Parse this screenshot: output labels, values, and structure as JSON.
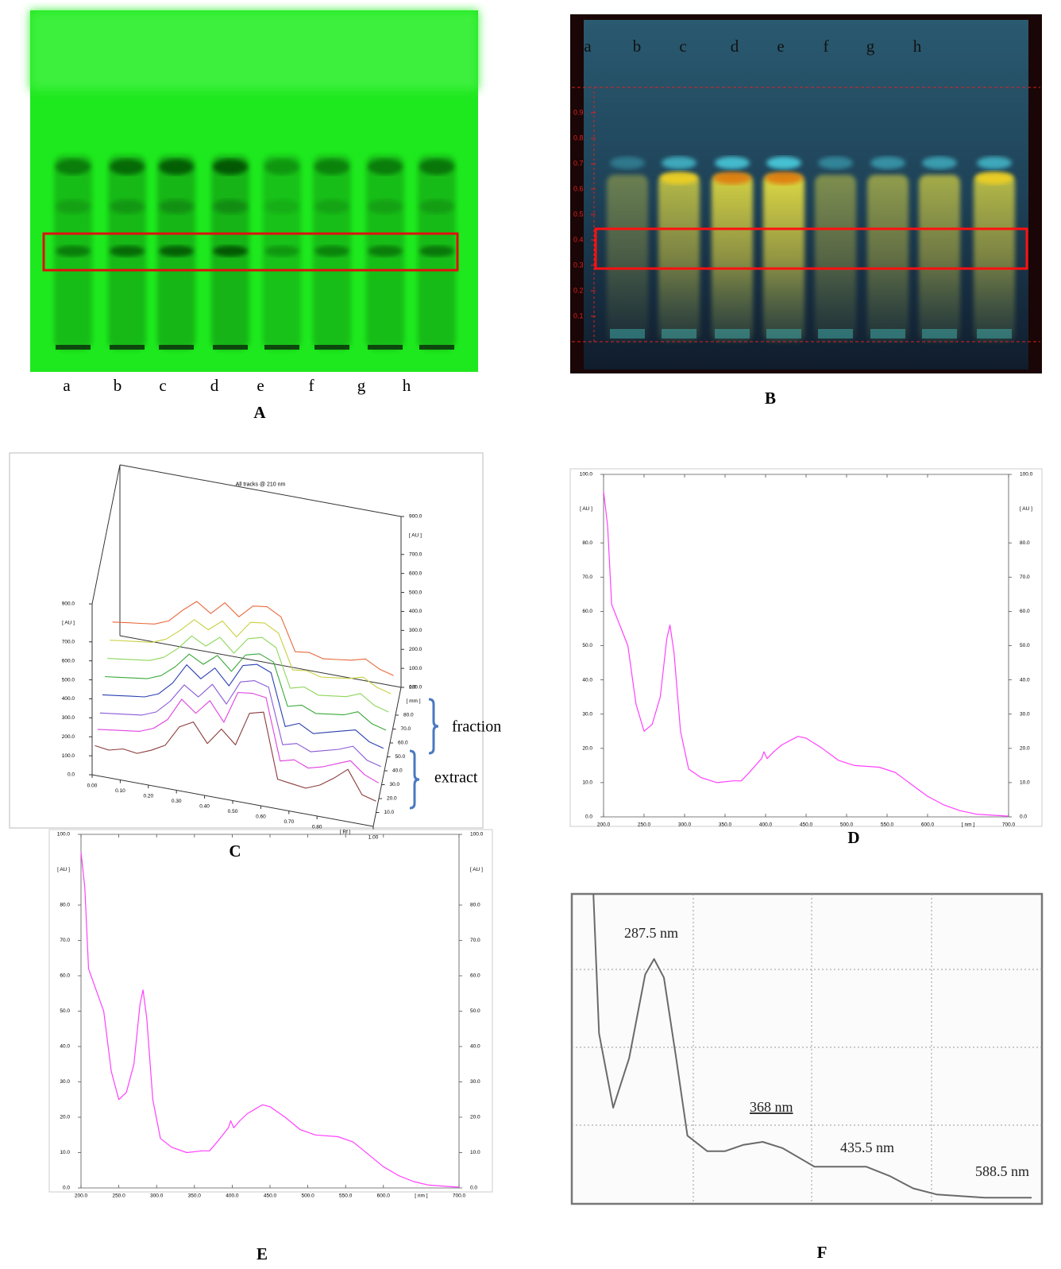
{
  "panel_labels": [
    "A",
    "B",
    "C",
    "D",
    "E",
    "F"
  ],
  "plate_a": {
    "lanes": [
      "a",
      "b",
      "c",
      "d",
      "e",
      "f",
      "g",
      "h"
    ]
  },
  "plate_b": {
    "lanes": [
      "a",
      "b",
      "c",
      "d",
      "e",
      "f",
      "g",
      "h"
    ],
    "ylim": [
      0,
      1
    ],
    "yticks": [
      0.1,
      0.2,
      0.3,
      0.4,
      0.5,
      0.6,
      0.7,
      0.8,
      0.9
    ]
  },
  "chart_data": [
    {
      "type": "line3d",
      "title": "All tracks @ 210 nm",
      "x": [
        0,
        0.05,
        0.1,
        0.15,
        0.2,
        0.25,
        0.3,
        0.35,
        0.4,
        0.45,
        0.5,
        0.55,
        0.6,
        0.65,
        0.7,
        0.75,
        0.8,
        0.85,
        0.9,
        0.95,
        1.0
      ],
      "xlim": [
        0,
        1
      ],
      "xticks": [
        {
          "value": 0,
          "label": "0.00"
        },
        {
          "value": 0.1,
          "label": "0.10"
        },
        {
          "value": 0.2,
          "label": "0.20"
        },
        {
          "value": 0.3,
          "label": "0.30"
        },
        {
          "value": 0.4,
          "label": "0.40"
        },
        {
          "value": 0.5,
          "label": "0.50"
        },
        {
          "value": 0.6,
          "label": "0.60"
        },
        {
          "value": 0.7,
          "label": "0.70"
        },
        {
          "value": 0.8,
          "label": "0.80"
        },
        {
          "value": 1,
          "label": "1.00"
        }
      ],
      "xlabel": "[ Rf ]",
      "ylim": [
        0,
        900
      ],
      "yticks": [
        {
          "value": 0,
          "label": "0.0"
        },
        {
          "value": 100,
          "label": "100.0"
        },
        {
          "value": 200,
          "label": "200.0"
        },
        {
          "value": 300,
          "label": "300.0"
        },
        {
          "value": 400,
          "label": "400.0"
        },
        {
          "value": 500,
          "label": "500.0"
        },
        {
          "value": 600,
          "label": "600.0"
        },
        {
          "value": 700,
          "label": "700.0"
        },
        {
          "value": 900,
          "label": "900.0"
        }
      ],
      "ylabel": "[ AU ]",
      "zlim": [
        0,
        100
      ],
      "zticks": [
        {
          "value": 10,
          "label": "10.0"
        },
        {
          "value": 20,
          "label": "20.0"
        },
        {
          "value": 30,
          "label": "30.0"
        },
        {
          "value": 40,
          "label": "40.0"
        },
        {
          "value": 50,
          "label": "50.0"
        },
        {
          "value": 60,
          "label": "60.0"
        },
        {
          "value": 70,
          "label": "70.0"
        },
        {
          "value": 80,
          "label": "80.0"
        },
        {
          "value": 100,
          "label": "100.0"
        }
      ],
      "zlabel": "[ mm ]",
      "annotations": [
        "fraction",
        "extract"
      ],
      "series": [
        {
          "color": "#8b3a3a",
          "values": [
            80,
            70,
            90,
            80,
            110,
            150,
            260,
            300,
            200,
            290,
            220,
            400,
            420,
            80,
            70,
            60,
            90,
            140,
            200,
            80,
            60
          ]
        },
        {
          "color": "#e040e0",
          "values": [
            100,
            110,
            120,
            130,
            160,
            220,
            340,
            280,
            360,
            260,
            430,
            440,
            430,
            110,
            130,
            100,
            120,
            150,
            180,
            120,
            90
          ]
        },
        {
          "color": "#8a5ad6",
          "values": [
            120,
            130,
            140,
            150,
            180,
            250,
            350,
            300,
            380,
            290,
            420,
            440,
            420,
            130,
            150,
            120,
            140,
            160,
            190,
            130,
            110
          ]
        },
        {
          "color": "#2a3fb0",
          "values": [
            150,
            160,
            170,
            180,
            210,
            280,
            390,
            330,
            400,
            320,
            440,
            460,
            430,
            160,
            190,
            150,
            170,
            190,
            210,
            160,
            140
          ]
        },
        {
          "color": "#3aa83a",
          "values": [
            180,
            190,
            200,
            210,
            240,
            300,
            380,
            340,
            400,
            330,
            430,
            450,
            420,
            200,
            220,
            190,
            200,
            210,
            240,
            190,
            170
          ]
        },
        {
          "color": "#8ed65a",
          "values": [
            210,
            220,
            230,
            240,
            270,
            330,
            410,
            370,
            430,
            360,
            450,
            470,
            430,
            230,
            250,
            220,
            230,
            240,
            270,
            220,
            200
          ]
        },
        {
          "color": "#c8d040",
          "values": [
            240,
            250,
            260,
            270,
            300,
            360,
            430,
            390,
            450,
            380,
            470,
            480,
            440,
            260,
            270,
            250,
            260,
            270,
            290,
            250,
            230
          ]
        },
        {
          "color": "#e8683a",
          "values": [
            270,
            280,
            290,
            300,
            330,
            400,
            460,
            410,
            480,
            420,
            490,
            500,
            460,
            290,
            300,
            280,
            290,
            300,
            320,
            280,
            260
          ]
        }
      ]
    },
    {
      "type": "line",
      "x": [
        200,
        205,
        210,
        220,
        230,
        240,
        250,
        260,
        270,
        278,
        282,
        287,
        295,
        305,
        320,
        340,
        360,
        370,
        380,
        395,
        398,
        402,
        410,
        420,
        440,
        450,
        470,
        490,
        510,
        540,
        560,
        580,
        600,
        620,
        640,
        660,
        700
      ],
      "values": [
        95,
        85,
        62,
        56,
        50,
        33,
        25,
        27,
        35,
        52,
        56,
        48,
        25,
        14,
        11.5,
        10,
        10.5,
        10.5,
        13,
        17,
        19,
        17,
        19,
        21,
        23.5,
        23,
        20,
        16.5,
        15,
        14.5,
        13,
        9.5,
        6,
        3.5,
        1.8,
        0.8,
        0.2
      ],
      "color": "#ff40ff",
      "xlim": [
        200,
        700
      ],
      "xticks": [
        {
          "value": 200,
          "label": "200.0"
        },
        {
          "value": 250,
          "label": "250.0"
        },
        {
          "value": 300,
          "label": "300.0"
        },
        {
          "value": 350,
          "label": "350.0"
        },
        {
          "value": 400,
          "label": "400.0"
        },
        {
          "value": 450,
          "label": "450.0"
        },
        {
          "value": 500,
          "label": "500.0"
        },
        {
          "value": 550,
          "label": "550.0"
        },
        {
          "value": 600,
          "label": "600.0"
        },
        {
          "value": 700,
          "label": "700.0"
        }
      ],
      "xlabel": "[ nm ]",
      "ylim": [
        0,
        100
      ],
      "yticks": [
        {
          "value": 0,
          "label": "0.0"
        },
        {
          "value": 10,
          "label": "10.0"
        },
        {
          "value": 20,
          "label": "20.0"
        },
        {
          "value": 30,
          "label": "30.0"
        },
        {
          "value": 40,
          "label": "40.0"
        },
        {
          "value": 50,
          "label": "50.0"
        },
        {
          "value": 60,
          "label": "60.0"
        },
        {
          "value": 70,
          "label": "70.0"
        },
        {
          "value": 80,
          "label": "80.0"
        },
        {
          "value": 100,
          "label": "100.0"
        }
      ],
      "ylabel": "[ AU ]"
    },
    {
      "type": "line",
      "x": [
        200,
        205,
        210,
        220,
        230,
        240,
        250,
        260,
        270,
        278,
        282,
        287,
        295,
        305,
        320,
        340,
        360,
        370,
        380,
        395,
        398,
        402,
        410,
        420,
        440,
        450,
        470,
        490,
        510,
        540,
        560,
        580,
        600,
        620,
        640,
        660,
        700
      ],
      "values": [
        95,
        85,
        62,
        56,
        50,
        33,
        25,
        27,
        35,
        52,
        56,
        48,
        25,
        14,
        11.5,
        10,
        10.5,
        10.5,
        13,
        17,
        19,
        17,
        19,
        21,
        23.5,
        23,
        20,
        16.5,
        15,
        14.5,
        13,
        9.5,
        6,
        3.5,
        1.8,
        0.8,
        0.2
      ],
      "color": "#ff40ff",
      "xlim": [
        200,
        700
      ],
      "xticks": [
        {
          "value": 200,
          "label": "200.0"
        },
        {
          "value": 250,
          "label": "250.0"
        },
        {
          "value": 300,
          "label": "300.0"
        },
        {
          "value": 350,
          "label": "350.0"
        },
        {
          "value": 400,
          "label": "400.0"
        },
        {
          "value": 450,
          "label": "450.0"
        },
        {
          "value": 500,
          "label": "500.0"
        },
        {
          "value": 550,
          "label": "550.0"
        },
        {
          "value": 600,
          "label": "600.0"
        },
        {
          "value": 700,
          "label": "700.0"
        }
      ],
      "xlabel": "[ nm ]",
      "ylim": [
        0,
        100
      ],
      "yticks": [
        {
          "value": 0,
          "label": "0.0"
        },
        {
          "value": 10,
          "label": "10.0"
        },
        {
          "value": 20,
          "label": "20.0"
        },
        {
          "value": 30,
          "label": "30.0"
        },
        {
          "value": 40,
          "label": "40.0"
        },
        {
          "value": 50,
          "label": "50.0"
        },
        {
          "value": 60,
          "label": "60.0"
        },
        {
          "value": 70,
          "label": "70.0"
        },
        {
          "value": 80,
          "label": "80.0"
        },
        {
          "value": 100,
          "label": "100.0"
        }
      ],
      "ylabel": "[ AU ]"
    },
    {
      "type": "line",
      "x": [
        223,
        229,
        244,
        261,
        278,
        287.5,
        298,
        311,
        323,
        344,
        363,
        382,
        403,
        424,
        458,
        513,
        538,
        563,
        588.5,
        639,
        689
      ],
      "values": [
        100,
        55,
        31,
        47,
        74,
        79,
        73,
        47,
        22,
        17,
        17,
        19,
        20,
        18,
        12,
        12,
        9,
        5,
        3,
        2,
        2
      ],
      "color": "#6a6a6a",
      "xlim": [
        200,
        700
      ],
      "ylim": [
        0,
        100
      ],
      "annotations": [
        "287.5 nm",
        "368 nm",
        "435.5 nm",
        "588.5 nm"
      ]
    }
  ]
}
